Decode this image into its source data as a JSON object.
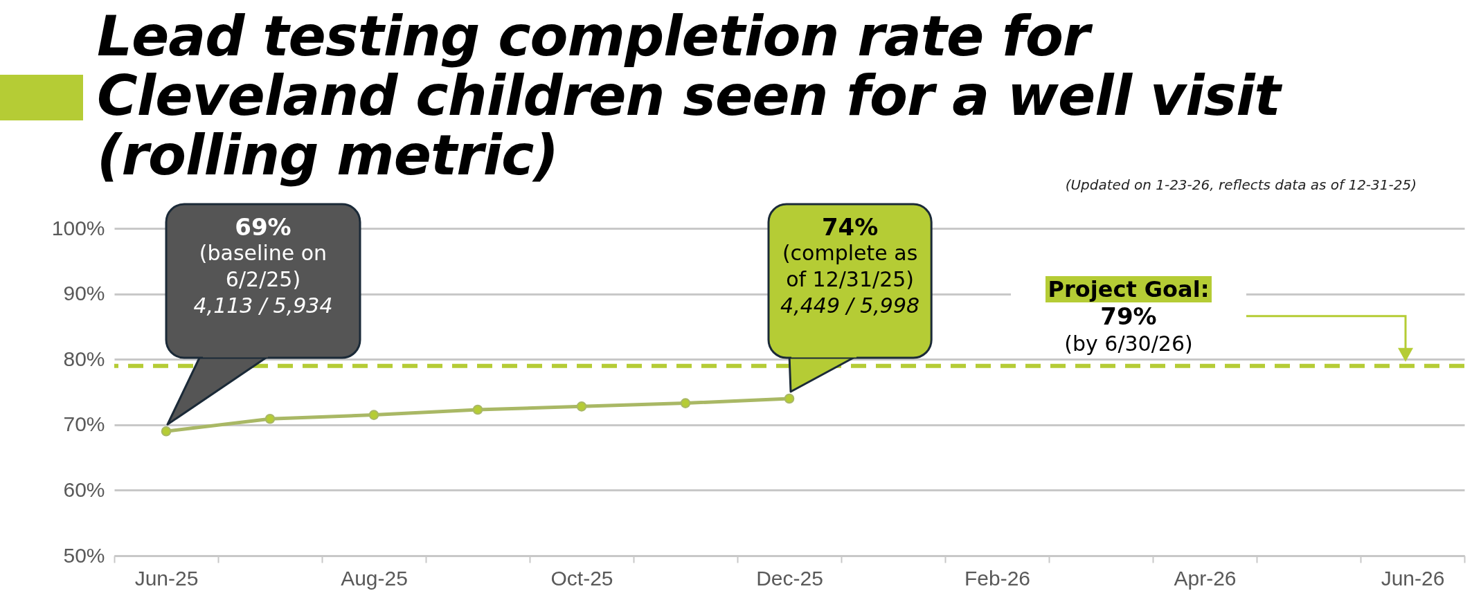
{
  "chart_data": {
    "type": "line",
    "title": "Lead testing completion rate for Cleveland children seen for a well visit (rolling metric)",
    "subtitle": "(Updated on 1-23-26, reflects data as of 12-31-25)",
    "categories": [
      "Jun-25",
      null,
      "Aug-25",
      null,
      "Oct-25",
      null,
      "Dec-25",
      null,
      "Feb-26",
      null,
      "Apr-26",
      null,
      "Jun-26"
    ],
    "series": [
      {
        "color": "#a9b865",
        "values": [
          69.0,
          70.9,
          71.5,
          72.3,
          72.8,
          73.3,
          74.0,
          null,
          null,
          null,
          null,
          null,
          null
        ]
      }
    ],
    "ylim": [
      50,
      100
    ],
    "yticks": [
      {
        "value": 50,
        "label": "50%"
      },
      {
        "value": 60,
        "label": "60%"
      },
      {
        "value": 70,
        "label": "70%"
      },
      {
        "value": 80,
        "label": "80%"
      },
      {
        "value": 90,
        "label": "90%"
      },
      {
        "value": 100,
        "label": "100%"
      }
    ],
    "grid": "y",
    "marker": "circle",
    "line_style": "solid",
    "ref_lines": [
      {
        "axis": "y",
        "value": 79,
        "label": "Project Goal:\n79%\n(by 6/30/26)",
        "color": "#b5cc35",
        "line_style": "dashed"
      }
    ],
    "annotations": [
      "69%\n(baseline on 6/2/25)\n4,113 / 5,934",
      "74%\n(complete as of 12/31/25)\n4,449 / 5,998"
    ]
  }
}
